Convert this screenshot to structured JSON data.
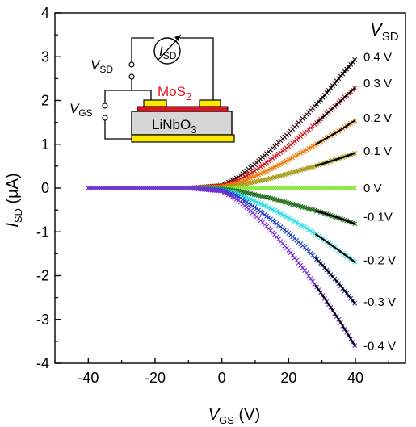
{
  "chart_data": {
    "type": "scatter",
    "xlabel": {
      "main": "V",
      "sub": "GS",
      "unit": " (V)"
    },
    "ylabel": {
      "main": "I",
      "sub": "SD",
      "unit": " (μA)"
    },
    "xlim": [
      -50,
      55
    ],
    "ylim": [
      -4,
      4
    ],
    "xticks": [
      -40,
      -20,
      0,
      20,
      40
    ],
    "yticks": [
      -4,
      -3,
      -2,
      -1,
      0,
      1,
      2,
      3,
      4
    ],
    "legend_title": {
      "main": "V",
      "sub": "SD"
    },
    "marker": "x",
    "fit_lines": "black segments on the high-V_GS end of each curve",
    "series": [
      {
        "name": "0.4 V",
        "color": "#2a0a0a",
        "values": [
          [
            -40,
            0
          ],
          [
            -20,
            0
          ],
          [
            -10,
            0
          ],
          [
            0,
            0.06
          ],
          [
            5,
            0.25
          ],
          [
            10,
            0.55
          ],
          [
            15,
            0.9
          ],
          [
            20,
            1.25
          ],
          [
            25,
            1.65
          ],
          [
            30,
            2.05
          ],
          [
            35,
            2.5
          ],
          [
            40,
            2.95
          ]
        ]
      },
      {
        "name": "0.3 V",
        "color": "#d4141e",
        "values": [
          [
            -40,
            0
          ],
          [
            -20,
            0
          ],
          [
            -10,
            0
          ],
          [
            0,
            0.05
          ],
          [
            5,
            0.18
          ],
          [
            10,
            0.4
          ],
          [
            15,
            0.67
          ],
          [
            20,
            0.95
          ],
          [
            25,
            1.27
          ],
          [
            30,
            1.6
          ],
          [
            35,
            1.95
          ],
          [
            40,
            2.3
          ]
        ]
      },
      {
        "name": "0.2 V",
        "color": "#f07a0a",
        "values": [
          [
            -40,
            0
          ],
          [
            -20,
            0
          ],
          [
            -10,
            0
          ],
          [
            0,
            0.03
          ],
          [
            5,
            0.12
          ],
          [
            10,
            0.27
          ],
          [
            15,
            0.45
          ],
          [
            20,
            0.64
          ],
          [
            25,
            0.86
          ],
          [
            30,
            1.08
          ],
          [
            35,
            1.3
          ],
          [
            40,
            1.55
          ]
        ]
      },
      {
        "name": "0.1 V",
        "color": "#a89a1a",
        "values": [
          [
            -40,
            0
          ],
          [
            -20,
            0
          ],
          [
            -10,
            0
          ],
          [
            0,
            0.01
          ],
          [
            5,
            0.06
          ],
          [
            10,
            0.14
          ],
          [
            15,
            0.23
          ],
          [
            20,
            0.33
          ],
          [
            25,
            0.44
          ],
          [
            30,
            0.55
          ],
          [
            35,
            0.67
          ],
          [
            40,
            0.8
          ]
        ]
      },
      {
        "name": "0 V",
        "color": "#7ee62a",
        "values": [
          [
            -40,
            0
          ],
          [
            -20,
            0
          ],
          [
            0,
            0
          ],
          [
            20,
            0
          ],
          [
            40,
            0
          ]
        ]
      },
      {
        "name": "-0.1V",
        "color": "#1f6b1a",
        "values": [
          [
            -40,
            0
          ],
          [
            -20,
            0
          ],
          [
            -10,
            0
          ],
          [
            0,
            -0.02
          ],
          [
            5,
            -0.07
          ],
          [
            10,
            -0.15
          ],
          [
            15,
            -0.24
          ],
          [
            20,
            -0.34
          ],
          [
            25,
            -0.45
          ],
          [
            30,
            -0.56
          ],
          [
            35,
            -0.68
          ],
          [
            40,
            -0.82
          ]
        ]
      },
      {
        "name": "-0.2 V",
        "color": "#2ee0e6",
        "values": [
          [
            -40,
            0
          ],
          [
            -20,
            0
          ],
          [
            -10,
            0
          ],
          [
            0,
            -0.04
          ],
          [
            5,
            -0.14
          ],
          [
            10,
            -0.3
          ],
          [
            15,
            -0.48
          ],
          [
            20,
            -0.68
          ],
          [
            25,
            -0.9
          ],
          [
            30,
            -1.15
          ],
          [
            35,
            -1.42
          ],
          [
            40,
            -1.7
          ]
        ]
      },
      {
        "name": "-0.3 V",
        "color": "#1a3fcf",
        "values": [
          [
            -40,
            0
          ],
          [
            -20,
            0
          ],
          [
            -10,
            0
          ],
          [
            0,
            -0.05
          ],
          [
            5,
            -0.2
          ],
          [
            10,
            -0.45
          ],
          [
            15,
            -0.73
          ],
          [
            20,
            -1.03
          ],
          [
            25,
            -1.37
          ],
          [
            30,
            -1.75
          ],
          [
            35,
            -2.18
          ],
          [
            40,
            -2.65
          ]
        ]
      },
      {
        "name": "-0.4 V",
        "color": "#7a2ed6",
        "values": [
          [
            -40,
            0
          ],
          [
            -20,
            0
          ],
          [
            -10,
            0
          ],
          [
            0,
            -0.07
          ],
          [
            5,
            -0.28
          ],
          [
            10,
            -0.62
          ],
          [
            15,
            -1.0
          ],
          [
            20,
            -1.42
          ],
          [
            25,
            -1.9
          ],
          [
            30,
            -2.43
          ],
          [
            35,
            -3.0
          ],
          [
            40,
            -3.62
          ]
        ]
      }
    ],
    "inset": {
      "channel_label": {
        "main": "MoS",
        "sub": "2"
      },
      "substrate_label": {
        "main": "LiNbO",
        "sub": "3"
      },
      "vsd_label": {
        "main": "V",
        "sub": "SD"
      },
      "vgs_label": {
        "main": "V",
        "sub": "GS"
      },
      "ammeter_label": {
        "main": "I",
        "sub": "SD"
      },
      "colors": {
        "electrode": "#ffe800",
        "mos2": "#e8101e",
        "substrate": "#d6d6d6",
        "channel_text": "#e8101e"
      }
    }
  }
}
